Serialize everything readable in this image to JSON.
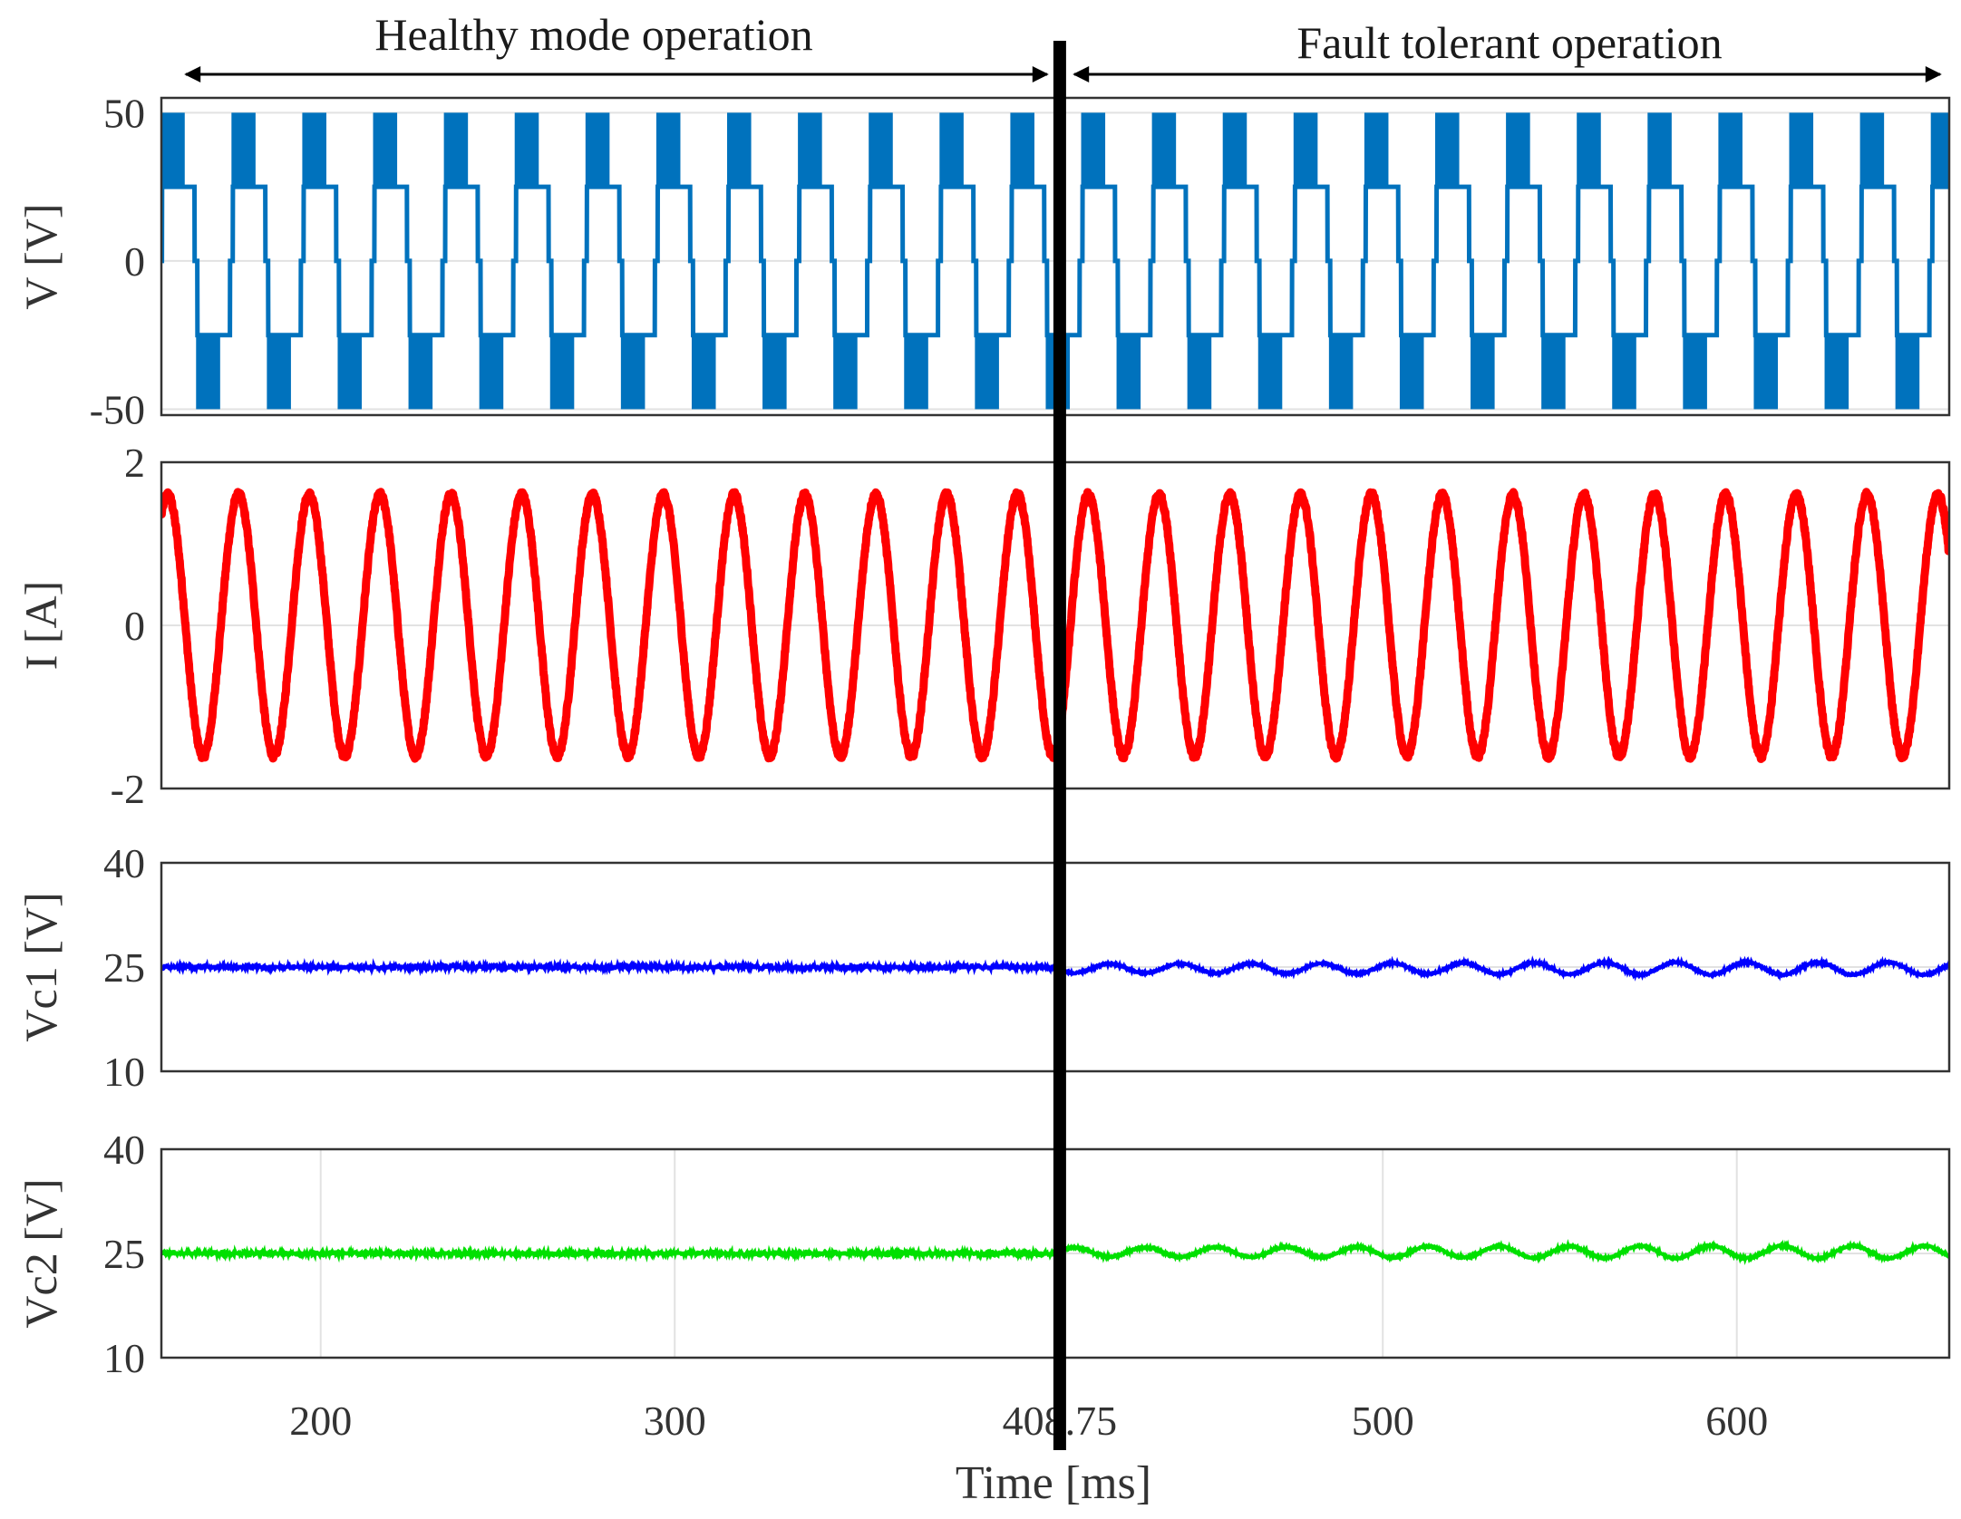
{
  "chart_data": {
    "type": "line",
    "title": "",
    "annotations": {
      "left_region": "Healthy mode operation",
      "right_region": "Fault tolerant operation",
      "fault_time_ms": 408.75,
      "fault_line_color": "#000000"
    },
    "xlabel": "Time [ms]",
    "xlim": [
      155,
      660
    ],
    "x_ticks": [
      200,
      300,
      408.75,
      500,
      600
    ],
    "x_tick_labels": [
      "200",
      "300",
      "408.75",
      "500",
      "600"
    ],
    "fundamental_period_ms": 20,
    "panels": [
      {
        "id": "voltage",
        "ylabel": "V [V]",
        "ylim": [
          -52,
          55
        ],
        "y_ticks": [
          50,
          0,
          -50
        ],
        "y_tick_labels": [
          "50",
          "0",
          "-50"
        ],
        "series": [
          {
            "name": "V",
            "color": "#0072bd",
            "waveform": "five-level staircase, PWM between 25 and 50 V near peaks",
            "levels": [
              -50,
              -25,
              0,
              25,
              50
            ],
            "period_ms": 20
          }
        ]
      },
      {
        "id": "current",
        "ylabel": "I [A]",
        "ylim": [
          -2,
          2
        ],
        "y_ticks": [
          2,
          0,
          -2
        ],
        "y_tick_labels": [
          "2",
          "0",
          "-2"
        ],
        "series": [
          {
            "name": "I",
            "color": "#ff0000",
            "waveform": "sinusoid",
            "amplitude": 1.6,
            "period_ms": 20
          }
        ]
      },
      {
        "id": "vc1",
        "ylabel": "Vc1 [V]",
        "ylim": [
          10,
          40
        ],
        "y_ticks": [
          40,
          25,
          10
        ],
        "y_tick_labels": [
          "40",
          "25",
          "10"
        ],
        "series": [
          {
            "name": "Vc1",
            "color": "#0000ff",
            "mean_before_fault": 25,
            "ripple_before_fault": 0.3,
            "mean_after_fault": 24.8,
            "ripple_after_fault": 0.9,
            "ripple_period_ms": 20
          }
        ]
      },
      {
        "id": "vc2",
        "ylabel": "Vc2 [V]",
        "ylim": [
          10,
          40
        ],
        "y_ticks": [
          40,
          25,
          10
        ],
        "y_tick_labels": [
          "40",
          "25",
          "10"
        ],
        "series": [
          {
            "name": "Vc2",
            "color": "#00e000",
            "mean_before_fault": 25,
            "ripple_before_fault": 0.3,
            "mean_after_fault": 25.2,
            "ripple_after_fault": 0.9,
            "ripple_period_ms": 20
          }
        ]
      }
    ]
  }
}
